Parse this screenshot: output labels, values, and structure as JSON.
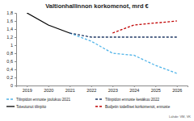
{
  "chart_data": {
    "type": "line",
    "title": "Valtionhallinnon korkomenot, mrd €",
    "source": "Lähde: VM, VK",
    "x": [
      2019,
      2020,
      2021,
      2022,
      2023,
      2024,
      2025,
      2026
    ],
    "xlim": [
      2018.5,
      2026.5
    ],
    "xticks": [
      2019,
      2020,
      2021,
      2022,
      2023,
      2024,
      2025,
      2026
    ],
    "ylim": [
      0,
      1.8
    ],
    "yticks": [
      0,
      {
        "value": 0.2,
        "label": "0,2"
      },
      {
        "value": 0.4,
        "label": "0,4"
      },
      {
        "value": 0.6,
        "label": "0,6"
      },
      {
        "value": 0.8,
        "label": "0,8"
      },
      1,
      {
        "value": 1.2,
        "label": "1,2"
      },
      {
        "value": 1.4,
        "label": "1,4"
      },
      {
        "value": 1.6,
        "label": "1,6"
      },
      {
        "value": 1.8,
        "label": "1,8"
      }
    ],
    "grid": false,
    "legend": "bottom",
    "series": [
      {
        "name": "Tilinpidon ennuste joulukuu 2021",
        "color": "#4fb3e8",
        "line_style": "dashed",
        "values": [
          null,
          null,
          1.3,
          1.1,
          0.8,
          0.75,
          0.5,
          0.3
        ]
      },
      {
        "name": "Tilinpidon ennuste kesäkuu 2022",
        "color": "#1f3864",
        "line_style": "dashed",
        "values": [
          null,
          null,
          1.3,
          1.2,
          1.2,
          1.2,
          1.2,
          1.2
        ]
      },
      {
        "name": "Toteutunut tilinpito",
        "color": "#000000",
        "line_style": "solid",
        "values": [
          1.8,
          1.5,
          1.3,
          null,
          null,
          null,
          null,
          null
        ]
      },
      {
        "name": "Budjetin todelliset korkomenot, ennuste",
        "color": "#c00000",
        "line_style": "dashed",
        "values": [
          null,
          null,
          null,
          null,
          1.3,
          1.5,
          1.55,
          1.6
        ]
      }
    ]
  }
}
